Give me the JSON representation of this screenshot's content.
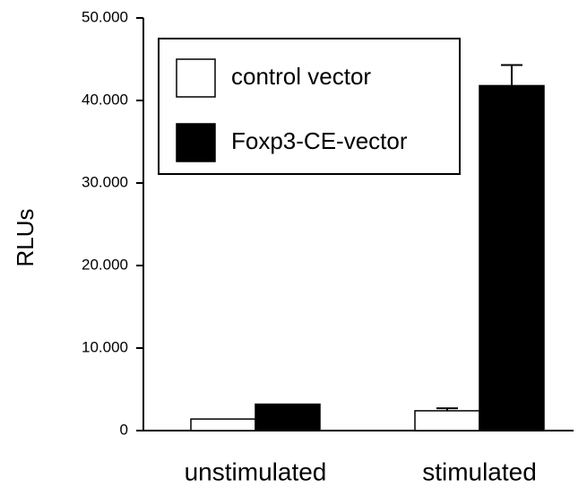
{
  "chart_data": {
    "type": "bar",
    "y_label": "RLUs",
    "categories": [
      "unstimulated",
      "stimulated"
    ],
    "series": [
      {
        "name": "control vector",
        "color": "#ffffff",
        "values": [
          1400,
          2400
        ],
        "errors": [
          null,
          300
        ]
      },
      {
        "name": "Foxp3-CE-vector",
        "color": "#000000",
        "values": [
          3200,
          41800
        ],
        "errors": [
          null,
          2500
        ]
      }
    ],
    "ylim": [
      0,
      50000
    ],
    "yticks": [
      0,
      {
        "value": 10000,
        "label": "10.000"
      },
      {
        "value": 20000,
        "label": "20.000"
      },
      {
        "value": 30000,
        "label": "30.000"
      },
      {
        "value": 40000,
        "label": "40.000"
      },
      {
        "value": 50000,
        "label": "50.000"
      }
    ],
    "legend": "upper left"
  }
}
